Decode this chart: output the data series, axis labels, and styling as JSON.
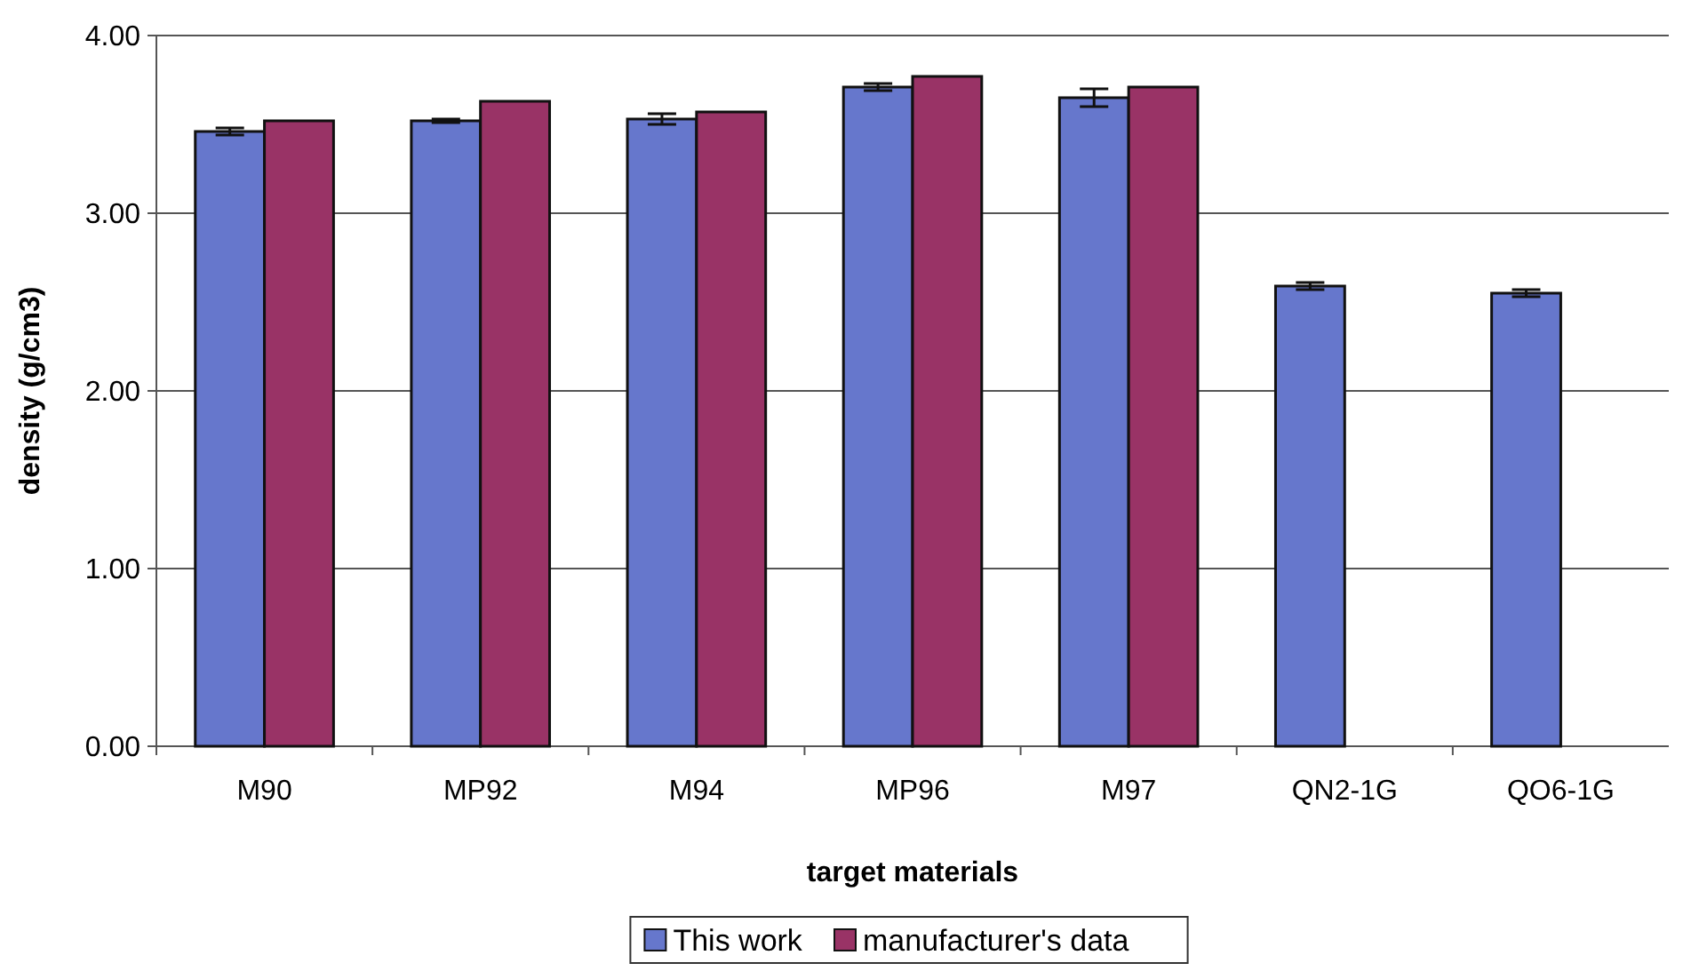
{
  "chart_data": {
    "type": "bar",
    "xlabel": "target materials",
    "ylabel": "density (g/cm3)",
    "categories": [
      "M90",
      "MP92",
      "M94",
      "MP96",
      "M97",
      "QN2-1G",
      "QO6-1G"
    ],
    "series": [
      {
        "name": "This work",
        "color": "#6677cc",
        "values": [
          3.46,
          3.52,
          3.53,
          3.71,
          3.65,
          2.59,
          2.55
        ],
        "errors": [
          0.02,
          0.01,
          0.03,
          0.02,
          0.05,
          0.02,
          0.02
        ]
      },
      {
        "name": "manufacturer's data",
        "color": "#993366",
        "values": [
          3.52,
          3.63,
          3.57,
          3.77,
          3.71,
          null,
          null
        ]
      }
    ],
    "ylim": [
      0,
      4
    ],
    "yticks": [
      {
        "value": 0,
        "label": "0.00"
      },
      {
        "value": 1,
        "label": "1.00"
      },
      {
        "value": 2,
        "label": "2.00"
      },
      {
        "value": 3,
        "label": "3.00"
      },
      {
        "value": 4,
        "label": "4.00"
      }
    ],
    "grid": "y",
    "legend": "bottom"
  }
}
